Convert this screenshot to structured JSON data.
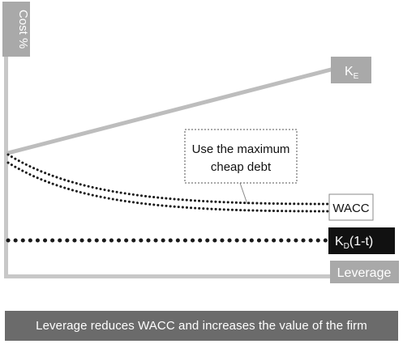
{
  "axes": {
    "y_label": "Cost %",
    "x_label": "Leverage"
  },
  "lines": {
    "ke": {
      "label_main": "K",
      "label_sub": "E"
    },
    "wacc": {
      "label": "WACC"
    },
    "kd": {
      "label_main": "K",
      "label_sub": "D",
      "label_suffix": "(1-t)"
    }
  },
  "callout": {
    "line1": "Use the maximum",
    "line2": "cheap debt"
  },
  "caption": "Leverage reduces WACC and increases the value of the firm",
  "colors": {
    "axis": "#c8c8c8",
    "ke_line": "#bdbdbd",
    "ke_tag": "#a9a9a9",
    "dotted": "#1a1a1a",
    "kd_tag": "#111111",
    "caption_bar": "#6b6b6b"
  }
}
